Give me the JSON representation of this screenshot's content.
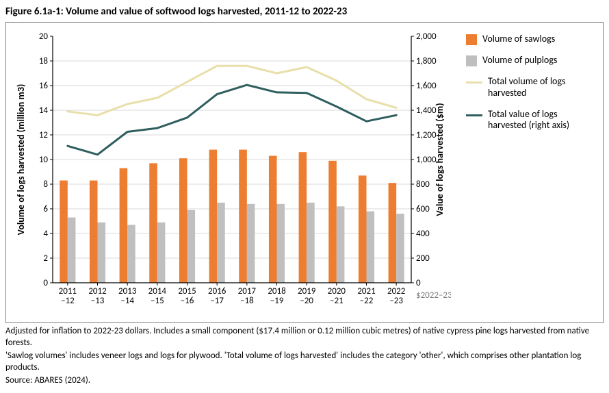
{
  "figure": {
    "title": "Figure 6.1a-1: Volume and value of softwood logs harvested, 2011-12 to 2022-23"
  },
  "chart": {
    "type": "bar+line dual-axis",
    "background_color": "#ffffff",
    "border_color": "#7f7f7f",
    "categories": [
      "2011\n–12",
      "2012\n–13",
      "2013\n–14",
      "2014\n–15",
      "2015\n–16",
      "2016\n–17",
      "2017\n–18",
      "2018\n–19",
      "2019\n–20",
      "2020\n–21",
      "2021\n–22",
      "2022\n–23"
    ],
    "left_axis": {
      "label": "Volume of logs harvested (million m3)",
      "min": 0,
      "max": 20,
      "tick_step": 2,
      "line_color": "#000000"
    },
    "right_axis": {
      "label": "Value of logs harvested ($m)",
      "min": 0,
      "max": 2000,
      "tick_step": 200,
      "line_color": "#000000",
      "note": "$2022–23"
    },
    "grid_color": "#d9d9d9",
    "series": {
      "sawlogs": {
        "label": "Volume of sawlogs",
        "type": "bar",
        "color": "#ed7d31",
        "values": [
          8.3,
          8.3,
          9.3,
          9.7,
          10.1,
          10.8,
          10.8,
          10.3,
          10.6,
          9.9,
          8.7,
          8.1
        ]
      },
      "pulplogs": {
        "label": "Volume of pulplogs",
        "type": "bar",
        "color": "#bfbfbf",
        "values": [
          5.3,
          4.9,
          4.7,
          4.9,
          5.9,
          6.5,
          6.4,
          6.4,
          6.5,
          6.2,
          5.8,
          5.6
        ]
      },
      "total_volume": {
        "label": "Total volume of logs harvested",
        "type": "line",
        "color": "#e8dfaa",
        "line_width": 3,
        "values": [
          13.9,
          13.6,
          14.5,
          15.0,
          16.3,
          17.6,
          17.6,
          17.0,
          17.5,
          16.4,
          14.9,
          14.2
        ]
      },
      "total_value": {
        "label": "Total value of logs harvested (right axis)",
        "type": "line",
        "axis": "right",
        "color": "#2f5e5e",
        "line_width": 3,
        "values": [
          1110,
          1040,
          1225,
          1255,
          1340,
          1530,
          1605,
          1545,
          1540,
          1430,
          1310,
          1360
        ]
      }
    },
    "legend_order": [
      "sawlogs",
      "pulplogs",
      "total_volume",
      "total_value"
    ],
    "bar_group_width": 0.53,
    "label_fontsize": 14,
    "tick_fontsize": 13
  },
  "footnotes": {
    "line1": "Adjusted for inflation to 2022-23 dollars. Includes a small component ($17.4 million or 0.12 million cubic metres) of native cypress pine logs harvested from native forests.",
    "line2": "'Sawlog volumes' includes veneer logs and logs for plywood. 'Total volume of logs harvested' includes the category 'other', which comprises other plantation log products.",
    "source": "Source: ABARES (2024)."
  }
}
